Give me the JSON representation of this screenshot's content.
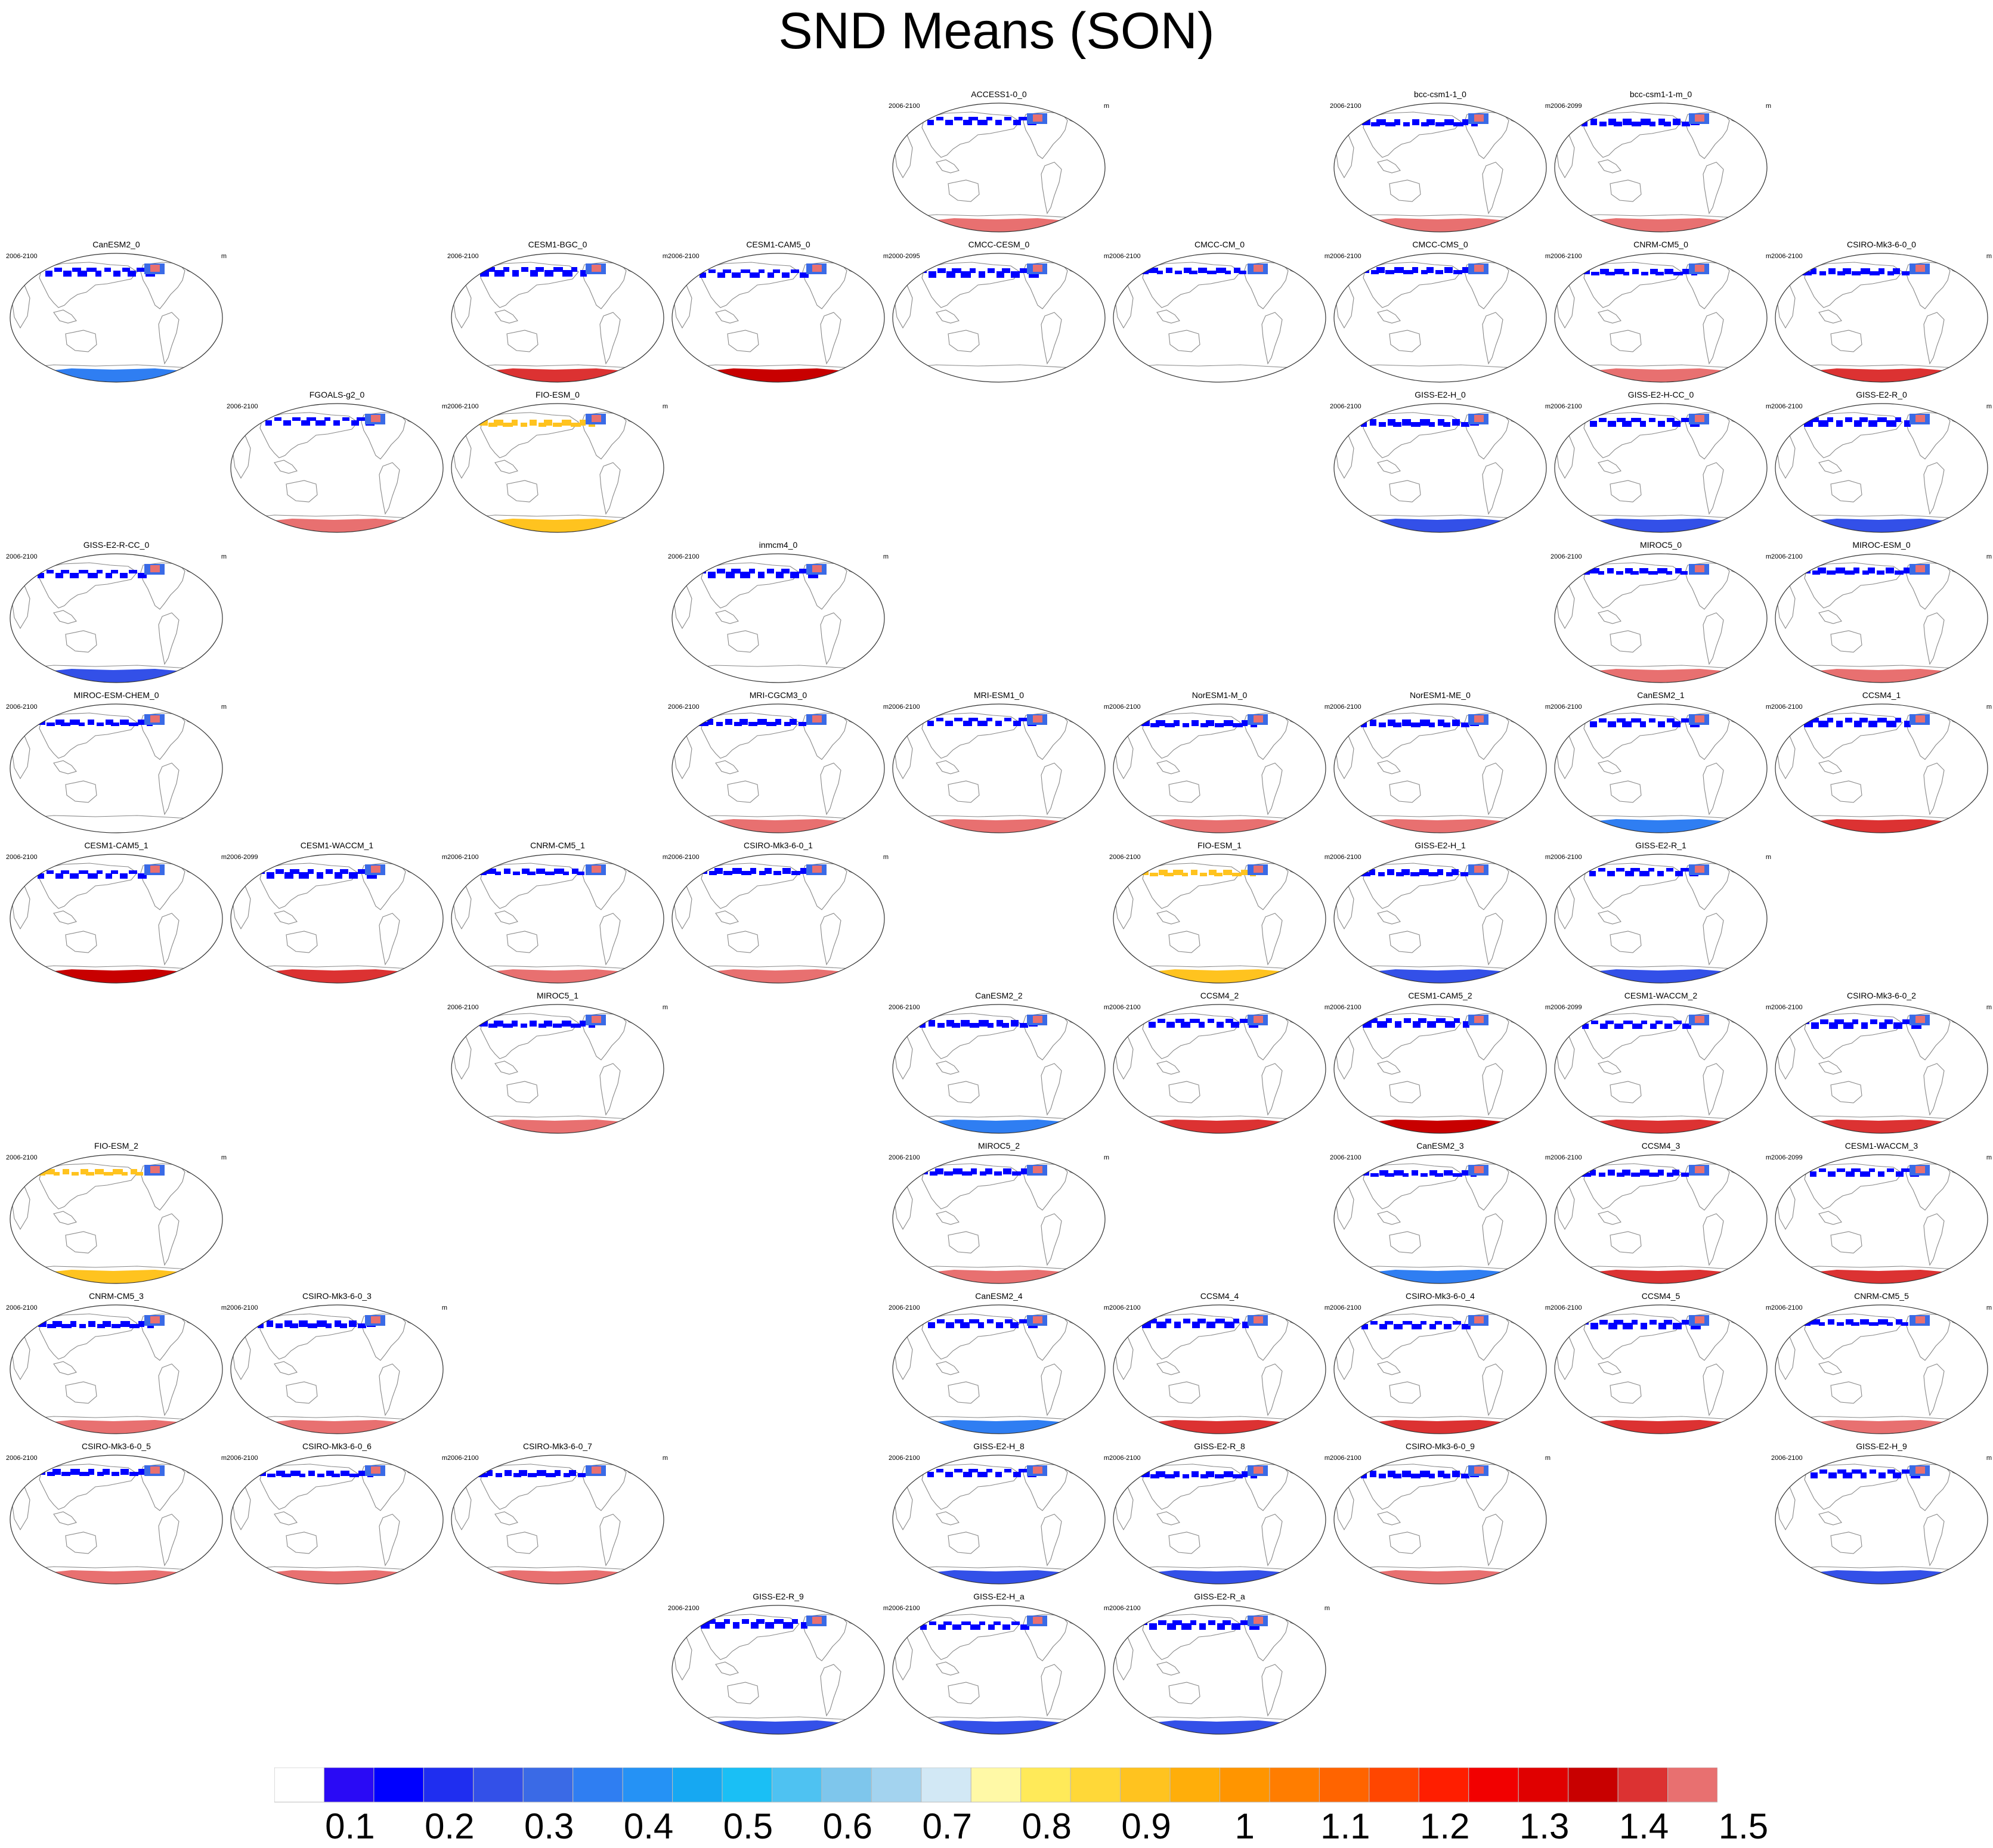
{
  "title": "SND Means (SON)",
  "chart_data": {
    "type": "heatmap",
    "title": "SND Means (SON)",
    "variable": "SND",
    "units": "m",
    "season": "SON",
    "colorbar": {
      "tick_labels": [
        "0.1",
        "0.2",
        "0.3",
        "0.4",
        "0.5",
        "0.6",
        "0.7",
        "0.8",
        "0.9",
        "1",
        "1.1",
        "1.2",
        "1.3",
        "1.4",
        "1.5"
      ],
      "colors": [
        "#ffffff",
        "#2a0af5",
        "#0000ff",
        "#1f2ef0",
        "#3350e8",
        "#3a6ae6",
        "#2f7ef2",
        "#2592f5",
        "#16a8f2",
        "#1abff5",
        "#4ec2f2",
        "#7ec6ec",
        "#a3d3ef",
        "#d2e8f5",
        "#fff9a6",
        "#ffea59",
        "#ffd838",
        "#ffc31f",
        "#ffae0a",
        "#ff9500",
        "#ff7d00",
        "#ff6400",
        "#ff4600",
        "#ff1e00",
        "#f20000",
        "#e00000",
        "#c80000",
        "#dc3232",
        "#e87070"
      ]
    },
    "panels": [
      {
        "name": "ACCESS1-0_0",
        "period": "2006-2100",
        "units": "m",
        "row": 0,
        "col": 4,
        "south_color": "#e87070",
        "north_color": "#0000ff"
      },
      {
        "name": "bcc-csm1-1_0",
        "period": "2006-2100",
        "units": "m",
        "row": 0,
        "col": 6,
        "south_color": "#e87070",
        "north_color": "#0000ff"
      },
      {
        "name": "bcc-csm1-1-m_0",
        "period": "2006-2099",
        "units": "m",
        "row": 0,
        "col": 7,
        "south_color": "#e87070",
        "north_color": "#0000ff"
      },
      {
        "name": "CanESM2_0",
        "period": "2006-2100",
        "units": "m",
        "row": 1,
        "col": 0,
        "south_color": "#2f7ef2",
        "north_color": "#0000ff"
      },
      {
        "name": "CESM1-BGC_0",
        "period": "2006-2100",
        "units": "m",
        "row": 1,
        "col": 2,
        "south_color": "#dc3232",
        "north_color": "#0000ff"
      },
      {
        "name": "CESM1-CAM5_0",
        "period": "2006-2100",
        "units": "m",
        "row": 1,
        "col": 3,
        "south_color": "#c80000",
        "north_color": "#0000ff"
      },
      {
        "name": "CMCC-CESM_0",
        "period": "2000-2095",
        "units": "m",
        "row": 1,
        "col": 4,
        "south_color": "",
        "north_color": "#0000ff"
      },
      {
        "name": "CMCC-CM_0",
        "period": "2006-2100",
        "units": "m",
        "row": 1,
        "col": 5,
        "south_color": "",
        "north_color": "#0000ff"
      },
      {
        "name": "CMCC-CMS_0",
        "period": "2006-2100",
        "units": "m",
        "row": 1,
        "col": 6,
        "south_color": "",
        "north_color": "#0000ff"
      },
      {
        "name": "CNRM-CM5_0",
        "period": "2006-2100",
        "units": "m",
        "row": 1,
        "col": 7,
        "south_color": "#e87070",
        "north_color": "#0000ff"
      },
      {
        "name": "CSIRO-Mk3-6-0_0",
        "period": "2006-2100",
        "units": "m",
        "row": 1,
        "col": 8,
        "south_color": "#dc3232",
        "north_color": "#0000ff"
      },
      {
        "name": "FGOALS-g2_0",
        "period": "2006-2100",
        "units": "m",
        "row": 2,
        "col": 1,
        "south_color": "#e87070",
        "north_color": "#0000ff"
      },
      {
        "name": "FIO-ESM_0",
        "period": "2006-2100",
        "units": "m",
        "row": 2,
        "col": 2,
        "south_color": "#ffc31f",
        "north_color": "#ffc31f"
      },
      {
        "name": "GISS-E2-H_0",
        "period": "2006-2100",
        "units": "m",
        "row": 2,
        "col": 6,
        "south_color": "#3350e8",
        "north_color": "#0000ff"
      },
      {
        "name": "GISS-E2-H-CC_0",
        "period": "2006-2100",
        "units": "m",
        "row": 2,
        "col": 7,
        "south_color": "#3350e8",
        "north_color": "#0000ff"
      },
      {
        "name": "GISS-E2-R_0",
        "period": "2006-2100",
        "units": "m",
        "row": 2,
        "col": 8,
        "south_color": "#3350e8",
        "north_color": "#0000ff"
      },
      {
        "name": "GISS-E2-R-CC_0",
        "period": "2006-2100",
        "units": "m",
        "row": 3,
        "col": 0,
        "south_color": "#3350e8",
        "north_color": "#0000ff"
      },
      {
        "name": "inmcm4_0",
        "period": "2006-2100",
        "units": "m",
        "row": 3,
        "col": 3,
        "south_color": "",
        "north_color": "#0000ff"
      },
      {
        "name": "MIROC5_0",
        "period": "2006-2100",
        "units": "m",
        "row": 3,
        "col": 7,
        "south_color": "#e87070",
        "north_color": "#0000ff"
      },
      {
        "name": "MIROC-ESM_0",
        "period": "2006-2100",
        "units": "m",
        "row": 3,
        "col": 8,
        "south_color": "#e87070",
        "north_color": "#0000ff"
      },
      {
        "name": "MIROC-ESM-CHEM_0",
        "period": "2006-2100",
        "units": "m",
        "row": 4,
        "col": 0,
        "south_color": "",
        "north_color": "#0000ff"
      },
      {
        "name": "MRI-CGCM3_0",
        "period": "2006-2100",
        "units": "m",
        "row": 4,
        "col": 3,
        "south_color": "#e87070",
        "north_color": "#0000ff"
      },
      {
        "name": "MRI-ESM1_0",
        "period": "2006-2100",
        "units": "m",
        "row": 4,
        "col": 4,
        "south_color": "#e87070",
        "north_color": "#0000ff"
      },
      {
        "name": "NorESM1-M_0",
        "period": "2006-2100",
        "units": "m",
        "row": 4,
        "col": 5,
        "south_color": "#e87070",
        "north_color": "#0000ff"
      },
      {
        "name": "NorESM1-ME_0",
        "period": "2006-2100",
        "units": "m",
        "row": 4,
        "col": 6,
        "south_color": "#e87070",
        "north_color": "#0000ff"
      },
      {
        "name": "CanESM2_1",
        "period": "2006-2100",
        "units": "m",
        "row": 4,
        "col": 7,
        "south_color": "#2f7ef2",
        "north_color": "#0000ff"
      },
      {
        "name": "CCSM4_1",
        "period": "2006-2100",
        "units": "m",
        "row": 4,
        "col": 8,
        "south_color": "#dc3232",
        "north_color": "#0000ff"
      },
      {
        "name": "CESM1-CAM5_1",
        "period": "2006-2100",
        "units": "m",
        "row": 5,
        "col": 0,
        "south_color": "#c80000",
        "north_color": "#0000ff"
      },
      {
        "name": "CESM1-WACCM_1",
        "period": "2006-2099",
        "units": "m",
        "row": 5,
        "col": 1,
        "south_color": "#dc3232",
        "north_color": "#0000ff"
      },
      {
        "name": "CNRM-CM5_1",
        "period": "2006-2100",
        "units": "m",
        "row": 5,
        "col": 2,
        "south_color": "#e87070",
        "north_color": "#0000ff"
      },
      {
        "name": "CSIRO-Mk3-6-0_1",
        "period": "2006-2100",
        "units": "m",
        "row": 5,
        "col": 3,
        "south_color": "#e87070",
        "north_color": "#0000ff"
      },
      {
        "name": "FIO-ESM_1",
        "period": "2006-2100",
        "units": "m",
        "row": 5,
        "col": 5,
        "south_color": "#ffc31f",
        "north_color": "#ffc31f"
      },
      {
        "name": "GISS-E2-H_1",
        "period": "2006-2100",
        "units": "m",
        "row": 5,
        "col": 6,
        "south_color": "#3350e8",
        "north_color": "#0000ff"
      },
      {
        "name": "GISS-E2-R_1",
        "period": "2006-2100",
        "units": "m",
        "row": 5,
        "col": 7,
        "south_color": "#3350e8",
        "north_color": "#0000ff"
      },
      {
        "name": "MIROC5_1",
        "period": "2006-2100",
        "units": "m",
        "row": 6,
        "col": 2,
        "south_color": "#e87070",
        "north_color": "#0000ff"
      },
      {
        "name": "CanESM2_2",
        "period": "2006-2100",
        "units": "m",
        "row": 6,
        "col": 4,
        "south_color": "#2f7ef2",
        "north_color": "#0000ff"
      },
      {
        "name": "CCSM4_2",
        "period": "2006-2100",
        "units": "m",
        "row": 6,
        "col": 5,
        "south_color": "#dc3232",
        "north_color": "#0000ff"
      },
      {
        "name": "CESM1-CAM5_2",
        "period": "2006-2100",
        "units": "m",
        "row": 6,
        "col": 6,
        "south_color": "#c80000",
        "north_color": "#0000ff"
      },
      {
        "name": "CESM1-WACCM_2",
        "period": "2006-2099",
        "units": "m",
        "row": 6,
        "col": 7,
        "south_color": "#dc3232",
        "north_color": "#0000ff"
      },
      {
        "name": "CSIRO-Mk3-6-0_2",
        "period": "2006-2100",
        "units": "m",
        "row": 6,
        "col": 8,
        "south_color": "#dc3232",
        "north_color": "#0000ff"
      },
      {
        "name": "FIO-ESM_2",
        "period": "2006-2100",
        "units": "m",
        "row": 7,
        "col": 0,
        "south_color": "#ffc31f",
        "north_color": "#ffc31f"
      },
      {
        "name": "MIROC5_2",
        "period": "2006-2100",
        "units": "m",
        "row": 7,
        "col": 4,
        "south_color": "#e87070",
        "north_color": "#0000ff"
      },
      {
        "name": "CanESM2_3",
        "period": "2006-2100",
        "units": "m",
        "row": 7,
        "col": 6,
        "south_color": "#2f7ef2",
        "north_color": "#0000ff"
      },
      {
        "name": "CCSM4_3",
        "period": "2006-2100",
        "units": "m",
        "row": 7,
        "col": 7,
        "south_color": "#dc3232",
        "north_color": "#0000ff"
      },
      {
        "name": "CESM1-WACCM_3",
        "period": "2006-2099",
        "units": "m",
        "row": 7,
        "col": 8,
        "south_color": "#dc3232",
        "north_color": "#0000ff"
      },
      {
        "name": "CNRM-CM5_3",
        "period": "2006-2100",
        "units": "m",
        "row": 8,
        "col": 0,
        "south_color": "#e87070",
        "north_color": "#0000ff"
      },
      {
        "name": "CSIRO-Mk3-6-0_3",
        "period": "2006-2100",
        "units": "m",
        "row": 8,
        "col": 1,
        "south_color": "#e87070",
        "north_color": "#0000ff"
      },
      {
        "name": "CanESM2_4",
        "period": "2006-2100",
        "units": "m",
        "row": 8,
        "col": 4,
        "south_color": "#2f7ef2",
        "north_color": "#0000ff"
      },
      {
        "name": "CCSM4_4",
        "period": "2006-2100",
        "units": "m",
        "row": 8,
        "col": 5,
        "south_color": "#dc3232",
        "north_color": "#0000ff"
      },
      {
        "name": "CSIRO-Mk3-6-0_4",
        "period": "2006-2100",
        "units": "m",
        "row": 8,
        "col": 6,
        "south_color": "#dc3232",
        "north_color": "#0000ff"
      },
      {
        "name": "CCSM4_5",
        "period": "2006-2100",
        "units": "m",
        "row": 8,
        "col": 7,
        "south_color": "#dc3232",
        "north_color": "#0000ff"
      },
      {
        "name": "CNRM-CM5_5",
        "period": "2006-2100",
        "units": "m",
        "row": 8,
        "col": 8,
        "south_color": "#e87070",
        "north_color": "#0000ff"
      },
      {
        "name": "CSIRO-Mk3-6-0_5",
        "period": "2006-2100",
        "units": "m",
        "row": 9,
        "col": 0,
        "south_color": "#e87070",
        "north_color": "#0000ff"
      },
      {
        "name": "CSIRO-Mk3-6-0_6",
        "period": "2006-2100",
        "units": "m",
        "row": 9,
        "col": 1,
        "south_color": "#e87070",
        "north_color": "#0000ff"
      },
      {
        "name": "CSIRO-Mk3-6-0_7",
        "period": "2006-2100",
        "units": "m",
        "row": 9,
        "col": 2,
        "south_color": "#e87070",
        "north_color": "#0000ff"
      },
      {
        "name": "GISS-E2-H_8",
        "period": "2006-2100",
        "units": "m",
        "row": 9,
        "col": 4,
        "south_color": "#3350e8",
        "north_color": "#0000ff"
      },
      {
        "name": "GISS-E2-R_8",
        "period": "2006-2100",
        "units": "m",
        "row": 9,
        "col": 5,
        "south_color": "#3350e8",
        "north_color": "#0000ff"
      },
      {
        "name": "CSIRO-Mk3-6-0_9",
        "period": "2006-2100",
        "units": "m",
        "row": 9,
        "col": 6,
        "south_color": "#e87070",
        "north_color": "#0000ff"
      },
      {
        "name": "GISS-E2-H_9",
        "period": "2006-2100",
        "units": "m",
        "row": 9,
        "col": 8,
        "south_color": "#3350e8",
        "north_color": "#0000ff"
      },
      {
        "name": "GISS-E2-R_9",
        "period": "2006-2100",
        "units": "m",
        "row": 10,
        "col": 3,
        "south_color": "#3350e8",
        "north_color": "#0000ff"
      },
      {
        "name": "GISS-E2-H_a",
        "period": "2006-2100",
        "units": "m",
        "row": 10,
        "col": 4,
        "south_color": "#3350e8",
        "north_color": "#0000ff"
      },
      {
        "name": "GISS-E2-R_a",
        "period": "2006-2100",
        "units": "m",
        "row": 10,
        "col": 5,
        "south_color": "#3350e8",
        "north_color": "#0000ff"
      }
    ]
  }
}
